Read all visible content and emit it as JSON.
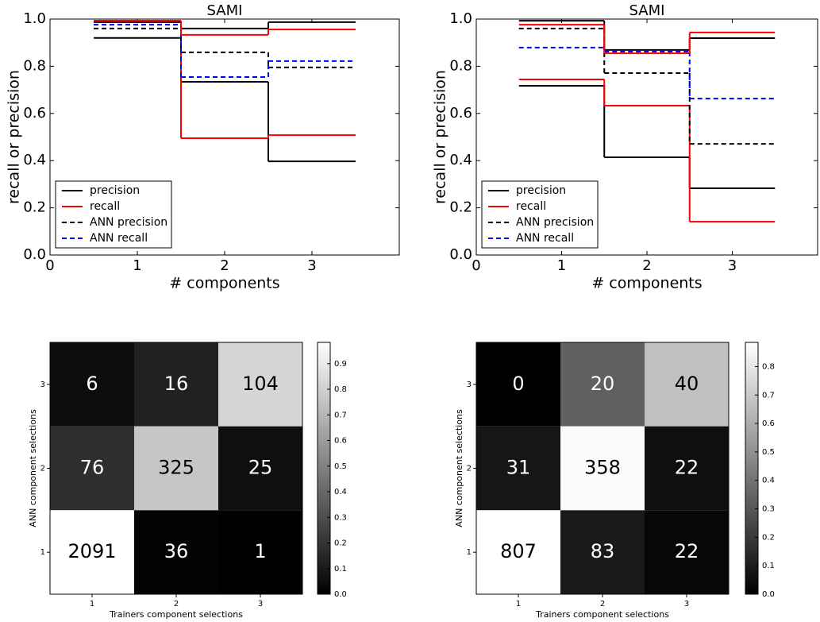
{
  "chart_data": [
    {
      "type": "step",
      "title": "SAMI",
      "xlabel": "# components",
      "ylabel": "recall or precision",
      "x": [
        1,
        2,
        3
      ],
      "xlim": [
        0,
        4
      ],
      "xticks": [
        0,
        1,
        2,
        3
      ],
      "ylim": [
        0,
        1
      ],
      "yticks": [
        {
          "value": 0,
          "label": "0.0"
        },
        0.2,
        0.4,
        0.6,
        0.8,
        {
          "value": 1,
          "label": "1.0"
        }
      ],
      "legend": "lower left",
      "series": [
        {
          "name": "precision",
          "color": "#000000",
          "linestyle": "solid",
          "values": [
            0.92,
            0.734,
            0.397
          ]
        },
        {
          "name": "recall",
          "color": "#ff0000",
          "linestyle": "solid",
          "values": [
            0.993,
            0.495,
            0.508
          ]
        },
        {
          "name": "ANN precision",
          "color": "#000000",
          "linestyle": "dashed",
          "values": [
            0.96,
            0.859,
            0.795
          ]
        },
        {
          "name": "ANN recall",
          "color": "#0000ff",
          "linestyle": "dashed",
          "values": [
            0.976,
            0.754,
            0.822
          ]
        },
        {
          "color": "#000000",
          "linestyle": "solid",
          "values": [
            0.987,
            0.96,
            0.987
          ]
        },
        {
          "color": "#ff0000",
          "linestyle": "solid",
          "values": [
            0.993,
            0.933,
            0.956
          ]
        }
      ]
    },
    {
      "type": "step",
      "title": "SAMI",
      "xlabel": "# components",
      "ylabel": "recall or precision",
      "x": [
        1,
        2,
        3
      ],
      "xlim": [
        0,
        4
      ],
      "xticks": [
        0,
        1,
        2,
        3
      ],
      "ylim": [
        0,
        1
      ],
      "yticks": [
        {
          "value": 0,
          "label": "0.0"
        },
        0.2,
        0.4,
        0.6,
        0.8,
        {
          "value": 1,
          "label": "1.0"
        }
      ],
      "legend": "lower left",
      "series": [
        {
          "name": "precision",
          "color": "#000000",
          "linestyle": "solid",
          "values": [
            0.717,
            0.414,
            0.283
          ]
        },
        {
          "name": "recall",
          "color": "#ff0000",
          "linestyle": "solid",
          "values": [
            0.744,
            0.633,
            0.141
          ]
        },
        {
          "name": "ANN precision",
          "color": "#000000",
          "linestyle": "dashed",
          "values": [
            0.96,
            0.771,
            0.471
          ]
        },
        {
          "name": "ANN recall",
          "color": "#0000ff",
          "linestyle": "dashed",
          "values": [
            0.879,
            0.862,
            0.663
          ]
        },
        {
          "color": "#000000",
          "linestyle": "solid",
          "values": [
            0.993,
            0.869,
            0.919
          ]
        },
        {
          "color": "#ff0000",
          "linestyle": "solid",
          "values": [
            0.976,
            0.855,
            0.943
          ]
        }
      ]
    },
    {
      "type": "heatmap",
      "xlabel": "Trainers component selections",
      "ylabel": "ANN component selections",
      "xcategories": [
        1,
        2,
        3
      ],
      "ycategories": [
        3,
        2,
        1
      ],
      "values": [
        [
          6,
          16,
          104
        ],
        [
          76,
          325,
          25
        ],
        [
          2091,
          36,
          1
        ]
      ],
      "clim": [
        0,
        0.983
      ],
      "cticks": [
        {
          "value": 0,
          "label": "0.0"
        },
        0.1,
        0.2,
        0.3,
        0.4,
        0.5,
        0.6,
        0.7,
        0.8,
        0.9
      ]
    },
    {
      "type": "heatmap",
      "xlabel": "Trainers component selections",
      "ylabel": "ANN component selections",
      "xcategories": [
        1,
        2,
        3
      ],
      "ycategories": [
        3,
        2,
        1
      ],
      "values": [
        [
          0,
          20,
          40
        ],
        [
          31,
          358,
          22
        ],
        [
          807,
          83,
          22
        ]
      ],
      "clim": [
        0,
        0.885
      ],
      "cticks": [
        {
          "value": 0,
          "label": "0.0"
        },
        0.1,
        0.2,
        0.3,
        0.4,
        0.5,
        0.6,
        0.7,
        0.8
      ]
    }
  ]
}
